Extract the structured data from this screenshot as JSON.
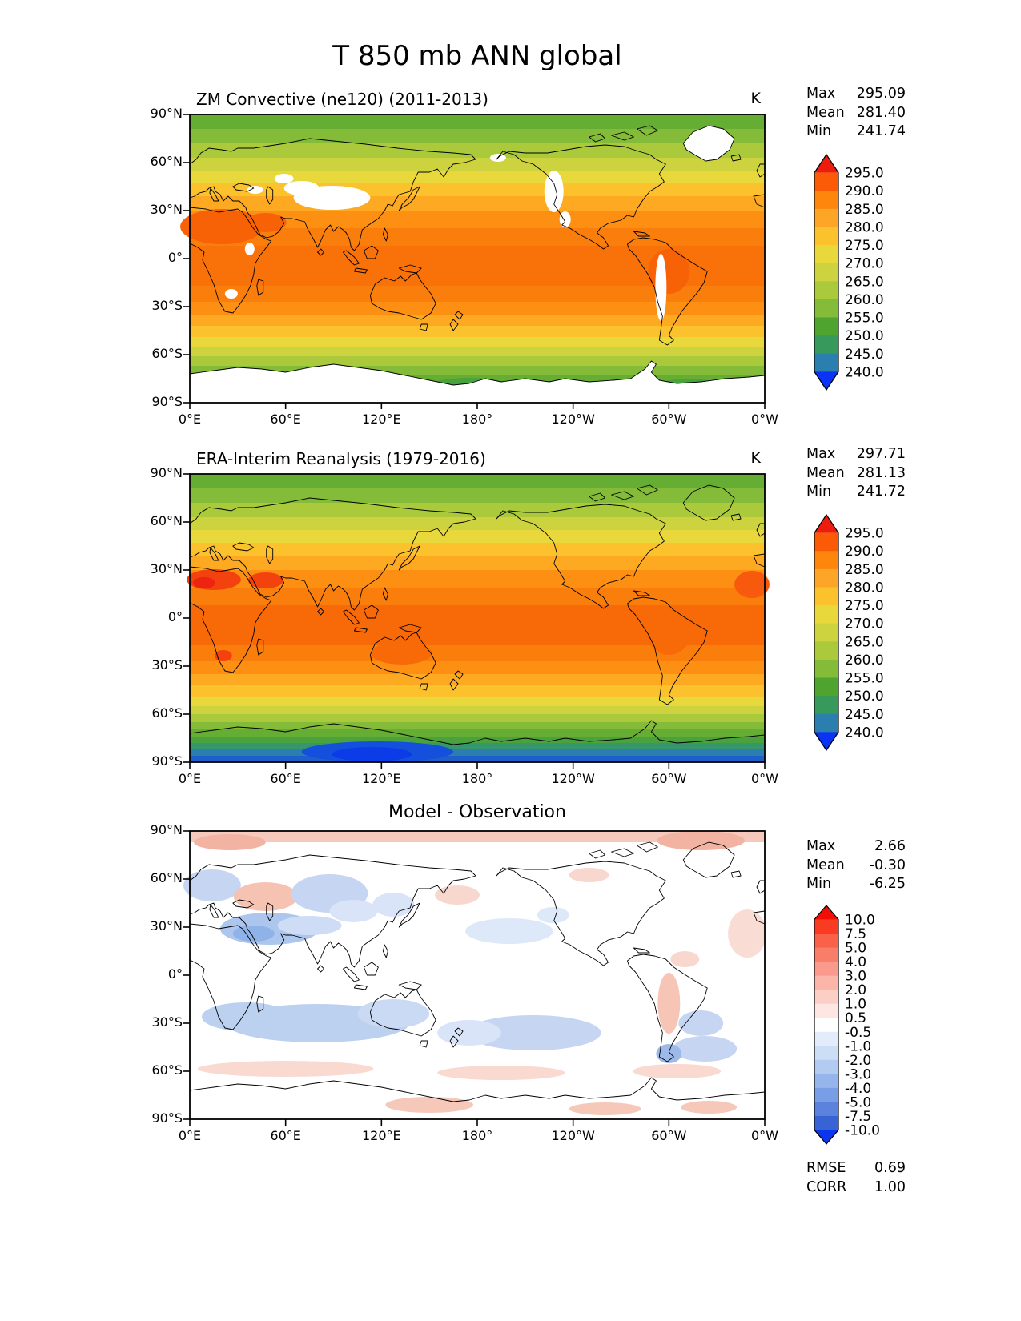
{
  "title": "T 850 mb ANN global",
  "chart_data": {
    "type": "heatmap",
    "variable": "Temperature at 850 mb",
    "season": "ANN",
    "region": "global",
    "projection": "equirectangular, longitudes 0°E to 0°W (Greenwich at both edges)",
    "x_ticks": [
      "0°E",
      "60°E",
      "120°E",
      "180°",
      "120°W",
      "60°W",
      "0°W"
    ],
    "y_ticks": [
      "90°N",
      "60°N",
      "30°N",
      "0°",
      "30°S",
      "60°S",
      "90°S"
    ],
    "panels": [
      {
        "title": "ZM Convective (ne120) (2011-2013)",
        "unit": "K",
        "stats": [
          [
            "Max",
            "295.09"
          ],
          [
            "Mean",
            "281.40"
          ],
          [
            "Min",
            "241.74"
          ]
        ],
        "colorbar": {
          "labels": [
            "295.0",
            "290.0",
            "285.0",
            "280.0",
            "275.0",
            "270.0",
            "265.0",
            "260.0",
            "255.0",
            "250.0",
            "245.0",
            "240.0"
          ],
          "colors": [
            "#ee1c0c",
            "#fb5a07",
            "#fe860c",
            "#fda527",
            "#fcc22e",
            "#e9d83b",
            "#cdd33f",
            "#aaca3c",
            "#84bb39",
            "#4ea42e",
            "#379a5c",
            "#2b7fae",
            "#0a33f5"
          ]
        },
        "field_bands": [
          [
            0,
            18,
            "#66ae33"
          ],
          [
            18,
            36,
            "#84bb39"
          ],
          [
            36,
            54,
            "#aaca3c"
          ],
          [
            54,
            70,
            "#cdd33f"
          ],
          [
            70,
            86,
            "#e9d83b"
          ],
          [
            86,
            102,
            "#fcc22e"
          ],
          [
            102,
            120,
            "#fdaa22"
          ],
          [
            120,
            142,
            "#fd9013"
          ],
          [
            142,
            164,
            "#fa7e0b"
          ],
          [
            164,
            214,
            "#f87109"
          ],
          [
            214,
            234,
            "#fa7e0b"
          ],
          [
            234,
            250,
            "#fd9013"
          ],
          [
            250,
            264,
            "#fdaa22"
          ],
          [
            264,
            278,
            "#fcc22e"
          ],
          [
            278,
            290,
            "#e9d83b"
          ],
          [
            290,
            302,
            "#cdd33f"
          ],
          [
            302,
            314,
            "#aaca3c"
          ],
          [
            314,
            326,
            "#84bb39"
          ],
          [
            326,
            338,
            "#66ae33"
          ],
          [
            338,
            360,
            "#ffffff"
          ]
        ],
        "blobs": [
          [
            40,
            140,
            52,
            22,
            "#f86207"
          ],
          [
            95,
            135,
            26,
            12,
            "#f86207"
          ],
          [
            600,
            196,
            26,
            28,
            "#f86207"
          ],
          [
            350,
            342,
            55,
            13,
            "#4aa23f"
          ],
          [
            362,
            346,
            26,
            8,
            "#35976b"
          ],
          [
            625,
            341,
            42,
            11,
            "#4aa23f"
          ]
        ],
        "masks": [
          [
            178,
            104,
            48,
            15
          ],
          [
            140,
            92,
            22,
            9
          ],
          [
            118,
            80,
            12,
            6
          ],
          [
            82,
            94,
            10,
            5
          ],
          [
            456,
            96,
            12,
            26
          ],
          [
            470,
            131,
            7,
            10
          ],
          [
            590,
            216,
            7,
            42
          ],
          [
            75,
            168,
            6,
            8
          ],
          [
            52,
            224,
            8,
            6
          ],
          [
            386,
            54,
            10,
            5
          ]
        ],
        "greenland_white": true,
        "antarctica_white": true
      },
      {
        "title": "ERA-Interim Reanalysis (1979-2016)",
        "unit": "K",
        "stats": [
          [
            "Max",
            "297.71"
          ],
          [
            "Mean",
            "281.13"
          ],
          [
            "Min",
            "241.72"
          ]
        ],
        "colorbar": {
          "labels": [
            "295.0",
            "290.0",
            "285.0",
            "280.0",
            "275.0",
            "270.0",
            "265.0",
            "260.0",
            "255.0",
            "250.0",
            "245.0",
            "240.0"
          ],
          "colors": [
            "#ee1c0c",
            "#fb5a07",
            "#fe860c",
            "#fda527",
            "#fcc22e",
            "#e9d83b",
            "#cdd33f",
            "#aaca3c",
            "#84bb39",
            "#4ea42e",
            "#379a5c",
            "#2b7fae",
            "#0a33f5"
          ]
        },
        "field_bands": [
          [
            0,
            18,
            "#66ae33"
          ],
          [
            18,
            36,
            "#84bb39"
          ],
          [
            36,
            54,
            "#aaca3c"
          ],
          [
            54,
            70,
            "#cdd33f"
          ],
          [
            70,
            86,
            "#e9d83b"
          ],
          [
            86,
            102,
            "#fcc22e"
          ],
          [
            102,
            120,
            "#fdaa22"
          ],
          [
            120,
            142,
            "#fd9013"
          ],
          [
            142,
            164,
            "#fa7e0b"
          ],
          [
            164,
            214,
            "#f86a08"
          ],
          [
            214,
            234,
            "#fa7e0b"
          ],
          [
            234,
            250,
            "#fd9013"
          ],
          [
            250,
            264,
            "#fdaa22"
          ],
          [
            264,
            278,
            "#fcc22e"
          ],
          [
            278,
            290,
            "#e9d83b"
          ],
          [
            290,
            300,
            "#cdd33f"
          ],
          [
            300,
            310,
            "#aaca3c"
          ],
          [
            310,
            318,
            "#84bb39"
          ],
          [
            318,
            328,
            "#66ae33"
          ],
          [
            328,
            336,
            "#4aa23f"
          ],
          [
            336,
            344,
            "#35976b"
          ],
          [
            344,
            352,
            "#2b7fb0"
          ],
          [
            352,
            360,
            "#1e5fcc"
          ]
        ],
        "blobs": [
          [
            30,
            132,
            34,
            13,
            "#f4420e"
          ],
          [
            18,
            136,
            14,
            7,
            "#ee2411"
          ],
          [
            95,
            133,
            22,
            10,
            "#f4420e"
          ],
          [
            704,
            138,
            22,
            17,
            "#f75a0d"
          ],
          [
            42,
            227,
            11,
            7,
            "#f4420e"
          ],
          [
            600,
            196,
            28,
            30,
            "#f86a08"
          ],
          [
            265,
            224,
            38,
            14,
            "#f86a08"
          ],
          [
            235,
            347,
            95,
            13,
            "#1450dc"
          ],
          [
            228,
            350,
            50,
            9,
            "#0b3ce8"
          ]
        ],
        "masks": [],
        "greenland_white": false,
        "antarctica_white": false
      },
      {
        "title": "Model - Observation",
        "unit": "",
        "stats": [
          [
            "Max",
            "2.66"
          ],
          [
            "Mean",
            "-0.30"
          ],
          [
            "Min",
            "-6.25"
          ]
        ],
        "extra_stats": [
          [
            "RMSE",
            "0.69"
          ],
          [
            "CORR",
            "1.00"
          ]
        ],
        "colorbar": {
          "labels": [
            "10.0",
            "7.5",
            "5.0",
            "4.0",
            "3.0",
            "2.0",
            "1.0",
            "0.5",
            "-0.5",
            "-1.0",
            "-2.0",
            "-3.0",
            "-4.0",
            "-5.0",
            "-7.5",
            "-10.0"
          ],
          "colors": [
            "#f20d05",
            "#f93b22",
            "#fa6149",
            "#f97e69",
            "#fa9a8c",
            "#fbb5a9",
            "#fccfc6",
            "#fee7e2",
            "#ffffff",
            "#e3ecfa",
            "#ccddf6",
            "#b3cbf1",
            "#96b5ec",
            "#7a9ee6",
            "#5b83de",
            "#3763d4",
            "#0b35ee"
          ]
        },
        "field_bands": [
          [
            0,
            14,
            "#f7c9bc"
          ],
          [
            14,
            360,
            "#ffffff"
          ]
        ],
        "blobs": [
          [
            640,
            12,
            55,
            12,
            "#f3b3a2"
          ],
          [
            50,
            14,
            45,
            10,
            "#f3b3a2"
          ],
          [
            28,
            68,
            36,
            20,
            "#c5d5f2"
          ],
          [
            95,
            82,
            40,
            18,
            "#f6c2b2"
          ],
          [
            175,
            78,
            48,
            24,
            "#c5d5f2"
          ],
          [
            205,
            100,
            30,
            14,
            "#d9e4f8"
          ],
          [
            100,
            122,
            62,
            20,
            "#adc6ee"
          ],
          [
            80,
            128,
            26,
            10,
            "#8fb2e8"
          ],
          [
            150,
            118,
            40,
            12,
            "#cfdcf5"
          ],
          [
            255,
            92,
            26,
            15,
            "#d9e4f8"
          ],
          [
            335,
            80,
            28,
            12,
            "#f8d8ce"
          ],
          [
            400,
            125,
            55,
            16,
            "#dde8f8"
          ],
          [
            455,
            105,
            20,
            10,
            "#dde8f8"
          ],
          [
            500,
            55,
            25,
            9,
            "#f8d8ce"
          ],
          [
            698,
            128,
            24,
            30,
            "#f9ddd4"
          ],
          [
            620,
            160,
            18,
            10,
            "#f8d8ce"
          ],
          [
            600,
            215,
            14,
            38,
            "#f6c5b6"
          ],
          [
            640,
            240,
            28,
            16,
            "#c5d5f2"
          ],
          [
            160,
            240,
            115,
            24,
            "#bcd0f0"
          ],
          [
            70,
            232,
            55,
            18,
            "#bcd0f0"
          ],
          [
            255,
            228,
            45,
            18,
            "#cbdaf4"
          ],
          [
            430,
            252,
            85,
            22,
            "#c5d5f2"
          ],
          [
            350,
            252,
            40,
            16,
            "#d9e4f8"
          ],
          [
            645,
            272,
            40,
            16,
            "#c5d5f2"
          ],
          [
            600,
            278,
            16,
            12,
            "#9db9ea"
          ],
          [
            120,
            297,
            110,
            10,
            "#f9d9d0"
          ],
          [
            390,
            302,
            80,
            9,
            "#f9d9d0"
          ],
          [
            610,
            300,
            55,
            9,
            "#f9d9d0"
          ],
          [
            300,
            342,
            55,
            10,
            "#f6c8ba"
          ],
          [
            520,
            347,
            45,
            8,
            "#f6c8ba"
          ],
          [
            650,
            345,
            35,
            8,
            "#f6c8ba"
          ]
        ],
        "masks": [],
        "greenland_white": false,
        "antarctica_white": false
      }
    ]
  }
}
